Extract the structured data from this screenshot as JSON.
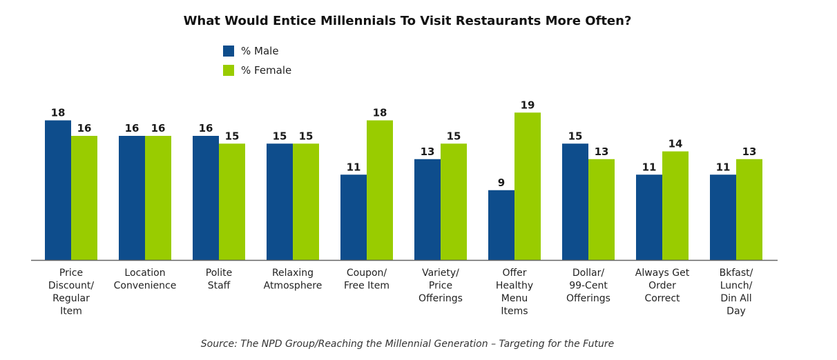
{
  "colors": {
    "male": "#0e4d8c",
    "female": "#99cc00",
    "axis": "#666666"
  },
  "chart_data": {
    "type": "bar",
    "title": "What Would Entice Millennials To Visit Restaurants More Often?",
    "categories": [
      "Price Discount/ Regular Item",
      "Location Convenience",
      "Polite Staff",
      "Relaxing Atmosphere",
      "Coupon/ Free Item",
      "Variety/ Price Offerings",
      "Offer Healthy Menu Items",
      "Dollar/ 99-Cent Offerings",
      "Always Get Order Correct",
      "Bkfast/ Lunch/ Din All Day"
    ],
    "category_lines": [
      [
        "Price",
        "Discount/",
        "Regular",
        "Item"
      ],
      [
        "Location",
        "Convenience"
      ],
      [
        "Polite",
        "Staff"
      ],
      [
        "Relaxing",
        "Atmosphere"
      ],
      [
        "Coupon/",
        "Free Item"
      ],
      [
        "Variety/",
        "Price",
        "Offerings"
      ],
      [
        "Offer",
        "Healthy",
        "Menu",
        "Items"
      ],
      [
        "Dollar/",
        "99-Cent",
        "Offerings"
      ],
      [
        "Always Get",
        "Order",
        "Correct"
      ],
      [
        "Bkfast/",
        "Lunch/",
        "Din All",
        "Day"
      ]
    ],
    "series": [
      {
        "name": "% Male",
        "values": [
          18,
          16,
          16,
          15,
          11,
          13,
          9,
          15,
          11,
          11
        ]
      },
      {
        "name": "% Female",
        "values": [
          16,
          16,
          15,
          15,
          18,
          15,
          19,
          13,
          14,
          13
        ]
      }
    ],
    "ylim": [
      0,
      19
    ],
    "grid": false,
    "legend_position": "top-left",
    "data_labels": true
  },
  "source": "Source: The NPD Group/Reaching the Millennial Generation – Targeting for the Future"
}
